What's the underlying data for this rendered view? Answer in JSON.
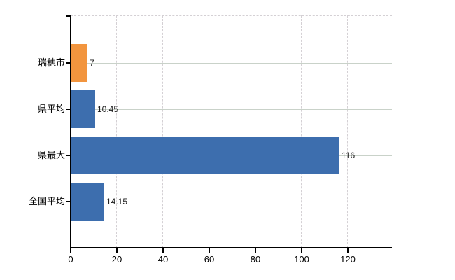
{
  "chart_data": {
    "type": "bar",
    "orientation": "horizontal",
    "title": "",
    "xlabel": "",
    "ylabel": "",
    "categories": [
      "瑞穂市",
      "県平均",
      "県最大",
      "全国平均"
    ],
    "values": [
      7,
      10.45,
      116,
      14.15
    ],
    "value_labels": [
      "7",
      "10.45",
      "116",
      "14.15"
    ],
    "bar_colors": [
      "#f2953e",
      "#3d6eae",
      "#3d6eae",
      "#3d6eae"
    ],
    "xlim": [
      0,
      139
    ],
    "x_ticks": [
      0,
      20,
      40,
      60,
      80,
      100,
      120
    ],
    "x_tick_labels": [
      "0",
      "20",
      "40",
      "60",
      "80",
      "100",
      "120"
    ],
    "grid": true,
    "legend_position": "none",
    "colors": {
      "highlight_bar": "#f2953e",
      "default_bar": "#3d6eae",
      "axis": "#000000",
      "vertical_gridline": "#d4d0d4",
      "horizontal_gridline": "#c9d2c9",
      "text": "#000000",
      "background": "#ffffff"
    }
  }
}
